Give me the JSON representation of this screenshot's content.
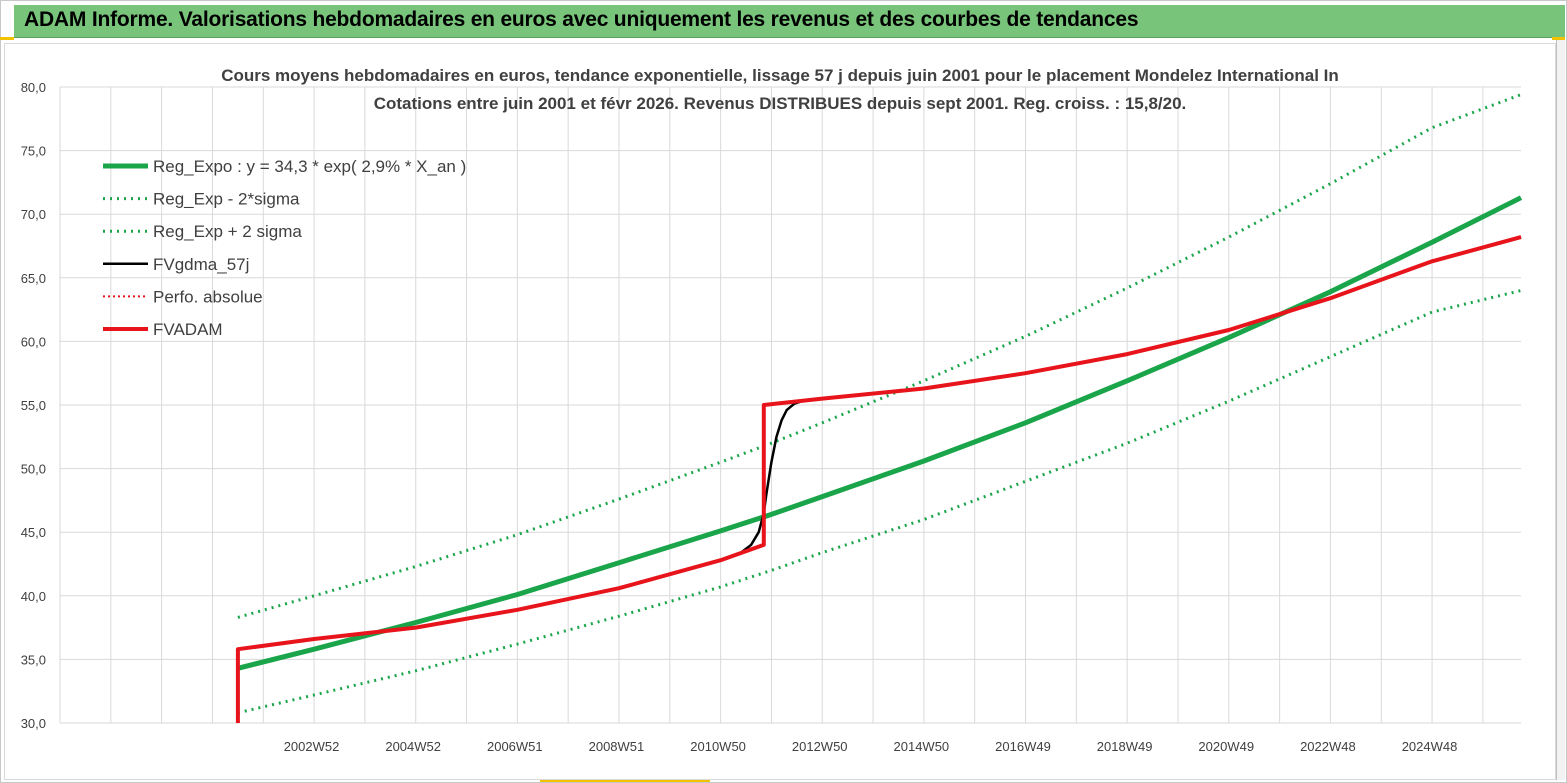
{
  "header": {
    "title": "ADAM Informe. Valorisations hebdomadaires en euros avec uniquement les revenus et des courbes de tendances"
  },
  "colors": {
    "banner": "#77c47a",
    "reg_expo": "#1aa54a",
    "fvgdma": "#000000",
    "fvadam": "#e8141b",
    "grid": "#d9d9d9",
    "accent_mark": "#f2c200"
  },
  "chart_data": {
    "type": "line",
    "title": [
      "Cours moyens hebdomadaires en euros, tendance exponentielle, lissage 57 j depuis juin 2001 pour le placement Mondelez International In",
      "Cotations entre juin 2001 et févr 2026. Revenus DISTRIBUES depuis sept 2001. Reg. croiss. : 15,8/20."
    ],
    "xlabel": "",
    "ylabel": "",
    "ylim": [
      30,
      80
    ],
    "y_ticks": [
      "30,0",
      "35,0",
      "40,0",
      "45,0",
      "50,0",
      "55,0",
      "60,0",
      "65,0",
      "70,0",
      "75,0",
      "80,0"
    ],
    "xlim": [
      1998.0,
      2026.75
    ],
    "x_tick_labels": [
      "2002W52",
      "2004W52",
      "2006W51",
      "2008W51",
      "2010W50",
      "2012W50",
      "2014W50",
      "2016W49",
      "2018W49",
      "2020W49",
      "2022W48",
      "2024W48"
    ],
    "x_tick_positions": [
      2002.95,
      2004.95,
      2006.95,
      2008.95,
      2010.95,
      2012.95,
      2014.95,
      2016.95,
      2018.95,
      2020.95,
      2022.95,
      2024.95
    ],
    "grid": true,
    "legend_position": "top-left",
    "series": [
      {
        "name": "Reg_Expo : y = 34,3 * exp( 2,9% *  X_an )",
        "style": "solid-thick",
        "x": [
          2001.5,
          2003,
          2005,
          2007,
          2009,
          2011,
          2012,
          2013,
          2015,
          2017,
          2019,
          2021,
          2023,
          2025,
          2026.75
        ],
        "y": [
          34.3,
          35.8,
          37.9,
          40.1,
          42.6,
          45.1,
          46.4,
          47.8,
          50.6,
          53.6,
          56.9,
          60.3,
          63.9,
          67.8,
          71.3
        ]
      },
      {
        "name": "Reg_Exp - 2*sigma",
        "style": "dotted",
        "x": [
          2001.5,
          2003,
          2005,
          2007,
          2009,
          2011,
          2012,
          2013,
          2015,
          2017,
          2019,
          2021,
          2023,
          2025,
          2026.75
        ],
        "y": [
          30.8,
          32.2,
          34.1,
          36.2,
          38.4,
          40.7,
          42.0,
          43.4,
          46.0,
          49.0,
          52.0,
          55.3,
          58.8,
          62.3,
          64.0
        ]
      },
      {
        "name": "Reg_Exp + 2 sigma",
        "style": "dotted",
        "x": [
          2001.5,
          2003,
          2005,
          2007,
          2009,
          2011,
          2012,
          2013,
          2015,
          2017,
          2019,
          2021,
          2023,
          2025,
          2026.75
        ],
        "y": [
          38.3,
          40.0,
          42.3,
          44.8,
          47.6,
          50.5,
          52.0,
          53.6,
          56.9,
          60.4,
          64.2,
          68.2,
          72.4,
          76.8,
          79.4
        ]
      },
      {
        "name": "FVgdma_57j",
        "style": "solid-thin",
        "x": [
          2001.5,
          2003,
          2005,
          2007,
          2009,
          2011,
          2011.4,
          2011.6,
          2011.75,
          2011.85,
          2011.9,
          2012.0,
          2012.1,
          2012.2,
          2012.3,
          2012.45,
          2012.6,
          2013,
          2015,
          2017,
          2019,
          2021,
          2023,
          2025,
          2026.75
        ],
        "y": [
          35.8,
          36.6,
          37.5,
          38.9,
          40.6,
          42.8,
          43.4,
          44.0,
          45.0,
          46.5,
          48.0,
          50.5,
          52.5,
          53.8,
          54.6,
          55.1,
          55.3,
          55.5,
          56.3,
          57.5,
          59.0,
          60.9,
          63.4,
          66.3,
          68.2
        ]
      },
      {
        "name": "Perfo. absolue",
        "style": "dotted",
        "x": [],
        "y": []
      },
      {
        "name": "FVADAM",
        "style": "solid-thick",
        "x": [
          2001.5,
          2001.5,
          2003,
          2005,
          2007,
          2009,
          2011,
          2011.85,
          2011.85,
          2012.3,
          2013,
          2015,
          2017,
          2019,
          2021,
          2023,
          2025,
          2026.75
        ],
        "y": [
          30.0,
          35.8,
          36.6,
          37.5,
          38.9,
          40.6,
          42.8,
          44.0,
          55.0,
          55.2,
          55.5,
          56.3,
          57.5,
          59.0,
          60.9,
          63.4,
          66.3,
          68.2
        ]
      }
    ]
  }
}
